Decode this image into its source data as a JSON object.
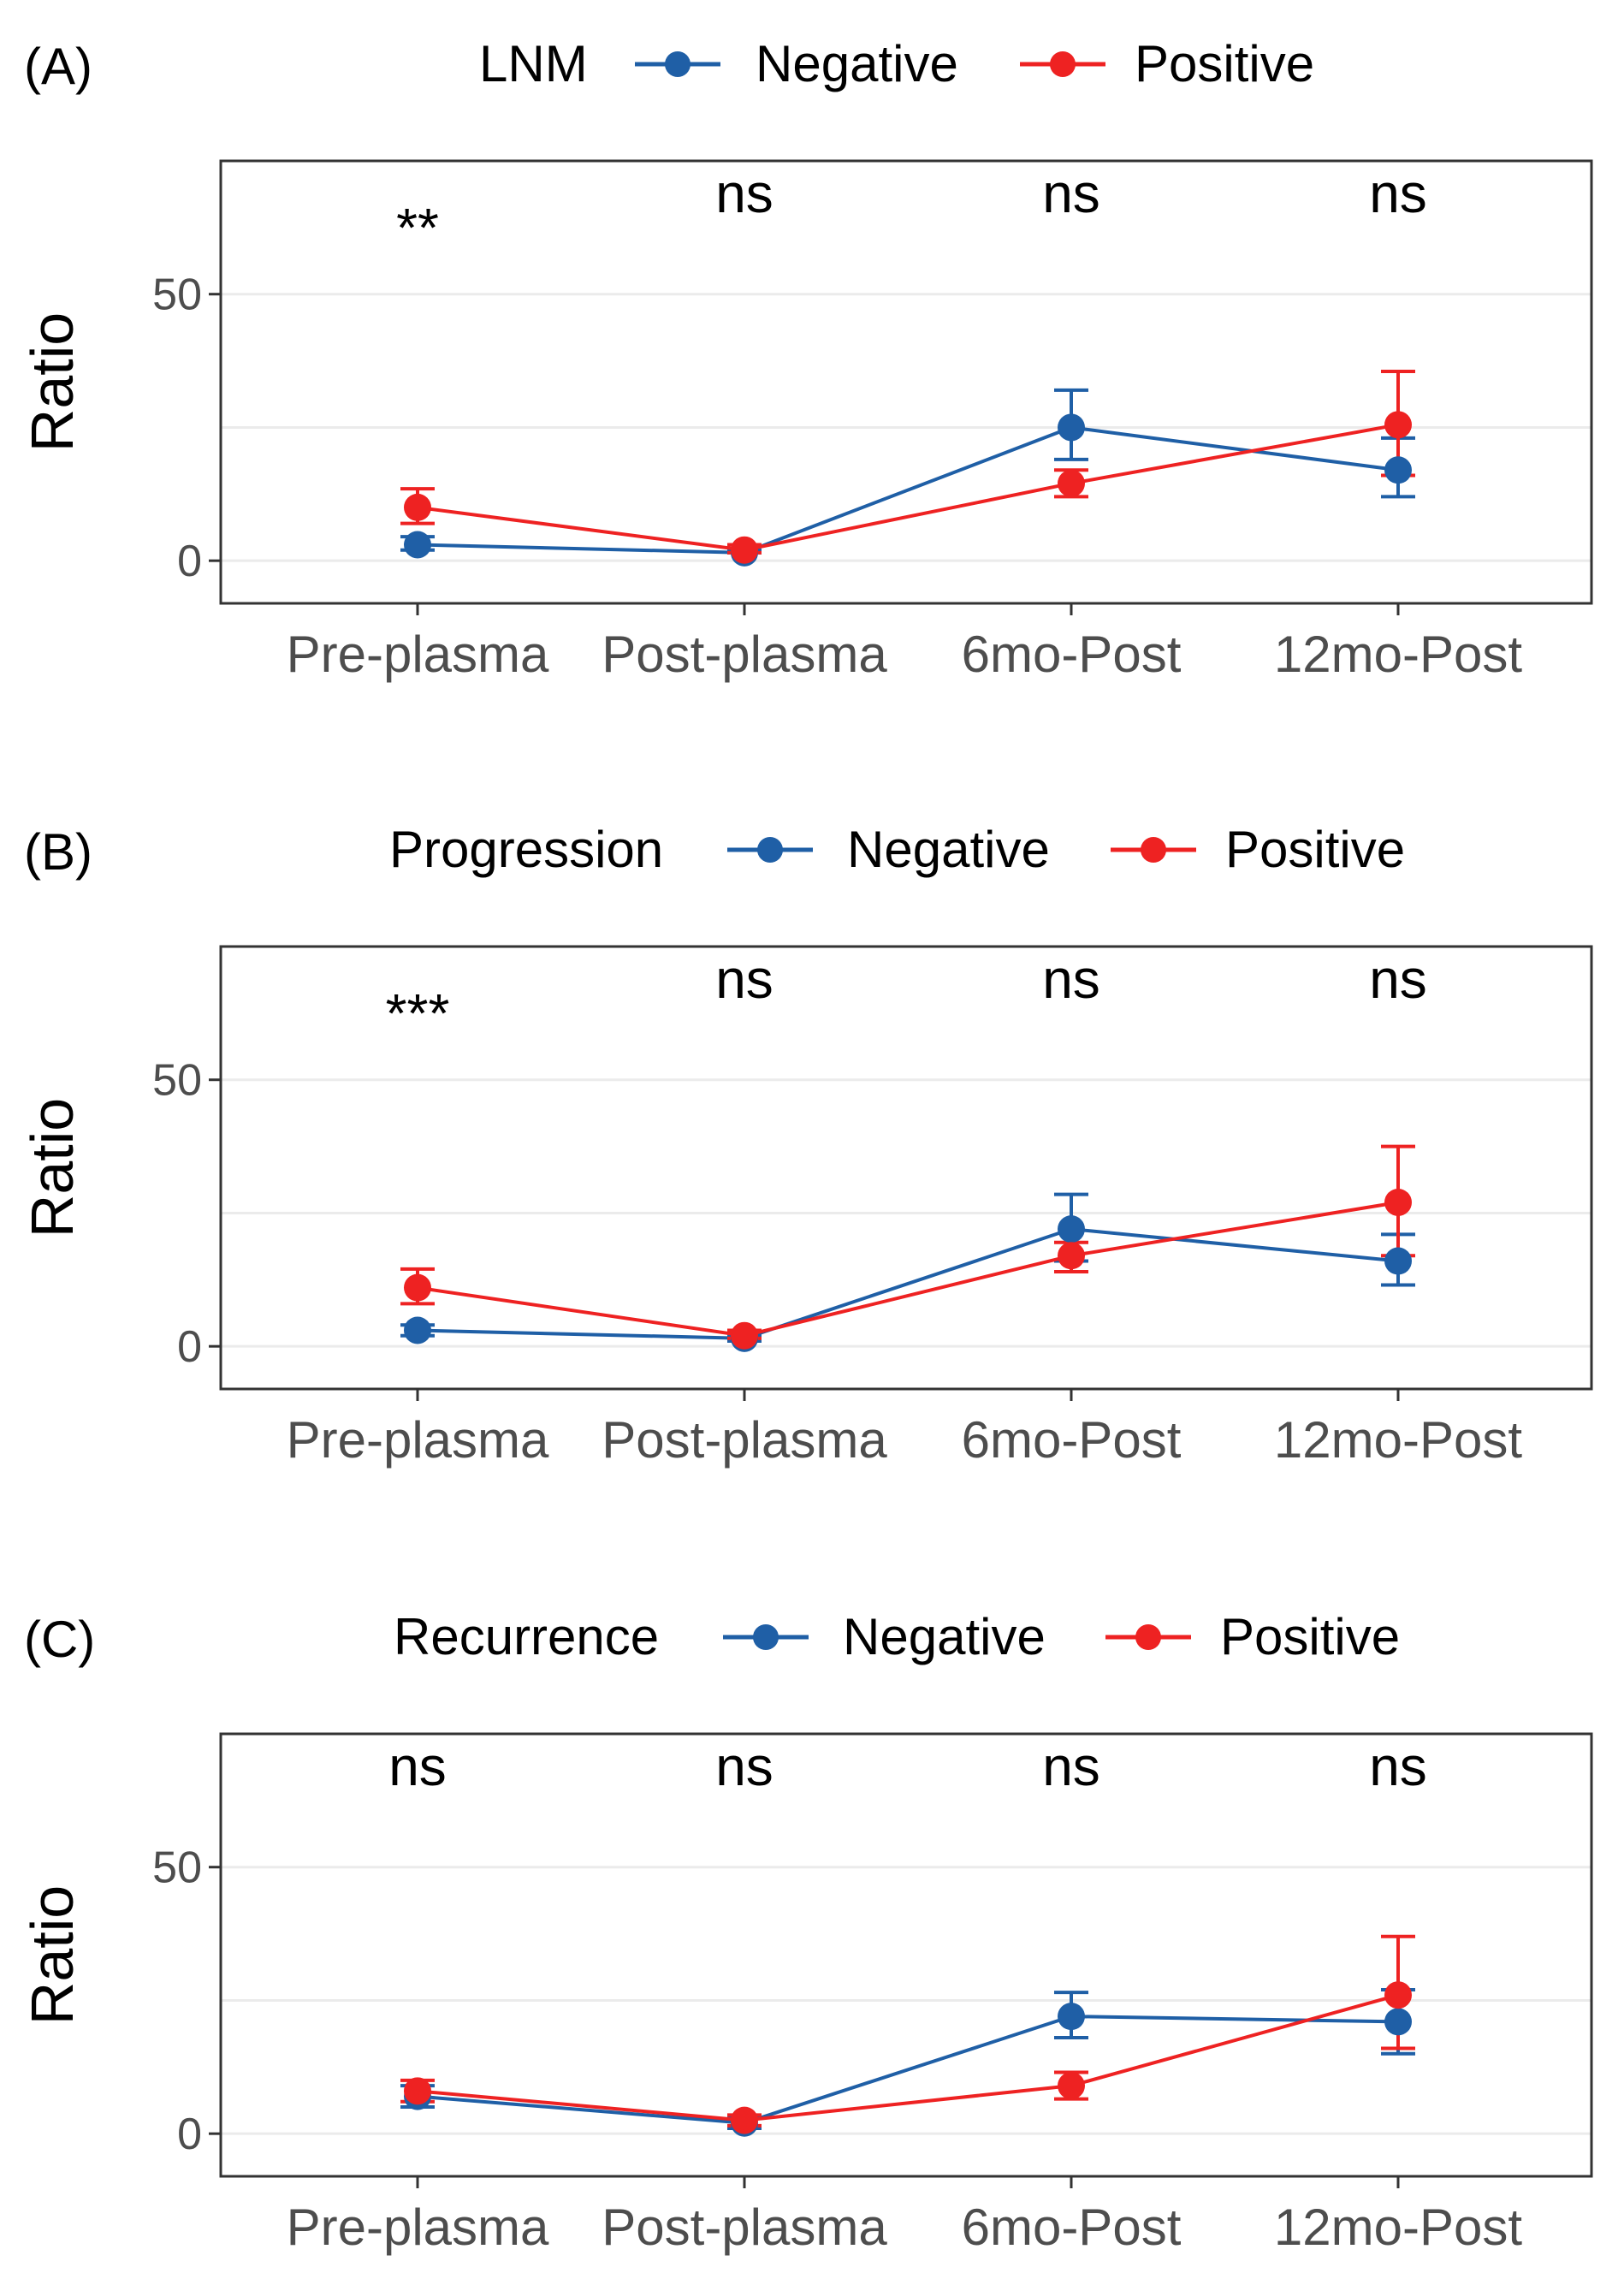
{
  "chart_data": [
    {
      "type": "line",
      "panel": "(A)",
      "legend_title": "LNM",
      "categories": [
        "Pre-plasma",
        "Post-plasma",
        "6mo-Post",
        "12mo-Post"
      ],
      "ylabel": "Ratio",
      "ylim": [
        -8,
        75
      ],
      "yticks": [
        0,
        50
      ],
      "significance": [
        "**",
        "ns",
        "ns",
        "ns"
      ],
      "series": [
        {
          "name": "Negative",
          "color": "#1f5fa6",
          "values": [
            3,
            1.5,
            25,
            17
          ],
          "err_low": [
            2,
            1.5,
            19,
            12
          ],
          "err_high": [
            4.5,
            2,
            32,
            23
          ]
        },
        {
          "name": "Positive",
          "color": "#ee2222",
          "values": [
            10,
            2,
            14.5,
            25.5
          ],
          "err_low": [
            7,
            1.5,
            12,
            16
          ],
          "err_high": [
            13.5,
            3,
            17,
            35.5
          ]
        }
      ]
    },
    {
      "type": "line",
      "panel": "(B)",
      "legend_title": "Progression",
      "categories": [
        "Pre-plasma",
        "Post-plasma",
        "6mo-Post",
        "12mo-Post"
      ],
      "ylabel": "Ratio",
      "ylim": [
        -8,
        75
      ],
      "yticks": [
        0,
        50
      ],
      "significance": [
        "***",
        "ns",
        "ns",
        "ns"
      ],
      "series": [
        {
          "name": "Negative",
          "color": "#1f5fa6",
          "values": [
            3,
            1.5,
            22,
            16
          ],
          "err_low": [
            2,
            1,
            16,
            11.5
          ],
          "err_high": [
            4,
            2,
            28.5,
            21
          ]
        },
        {
          "name": "Positive",
          "color": "#ee2222",
          "values": [
            11,
            2,
            17,
            27
          ],
          "err_low": [
            8,
            1.5,
            14,
            17
          ],
          "err_high": [
            14.5,
            3,
            19.5,
            37.5
          ]
        }
      ]
    },
    {
      "type": "line",
      "panel": "(C)",
      "legend_title": "Recurrence",
      "categories": [
        "Pre-plasma",
        "Post-plasma",
        "6mo-Post",
        "12mo-Post"
      ],
      "ylabel": "Ratio",
      "ylim": [
        -8,
        75
      ],
      "yticks": [
        0,
        50
      ],
      "significance": [
        "ns",
        "ns",
        "ns",
        "ns"
      ],
      "series": [
        {
          "name": "Negative",
          "color": "#1f5fa6",
          "values": [
            7,
            2,
            22,
            21
          ],
          "err_low": [
            5,
            1,
            18,
            15
          ],
          "err_high": [
            9,
            3,
            26.5,
            27
          ]
        },
        {
          "name": "Positive",
          "color": "#ee2222",
          "values": [
            8,
            2.5,
            9,
            26
          ],
          "err_low": [
            6,
            1.5,
            6.5,
            16
          ],
          "err_high": [
            10,
            3.5,
            11.5,
            37
          ]
        }
      ]
    }
  ]
}
